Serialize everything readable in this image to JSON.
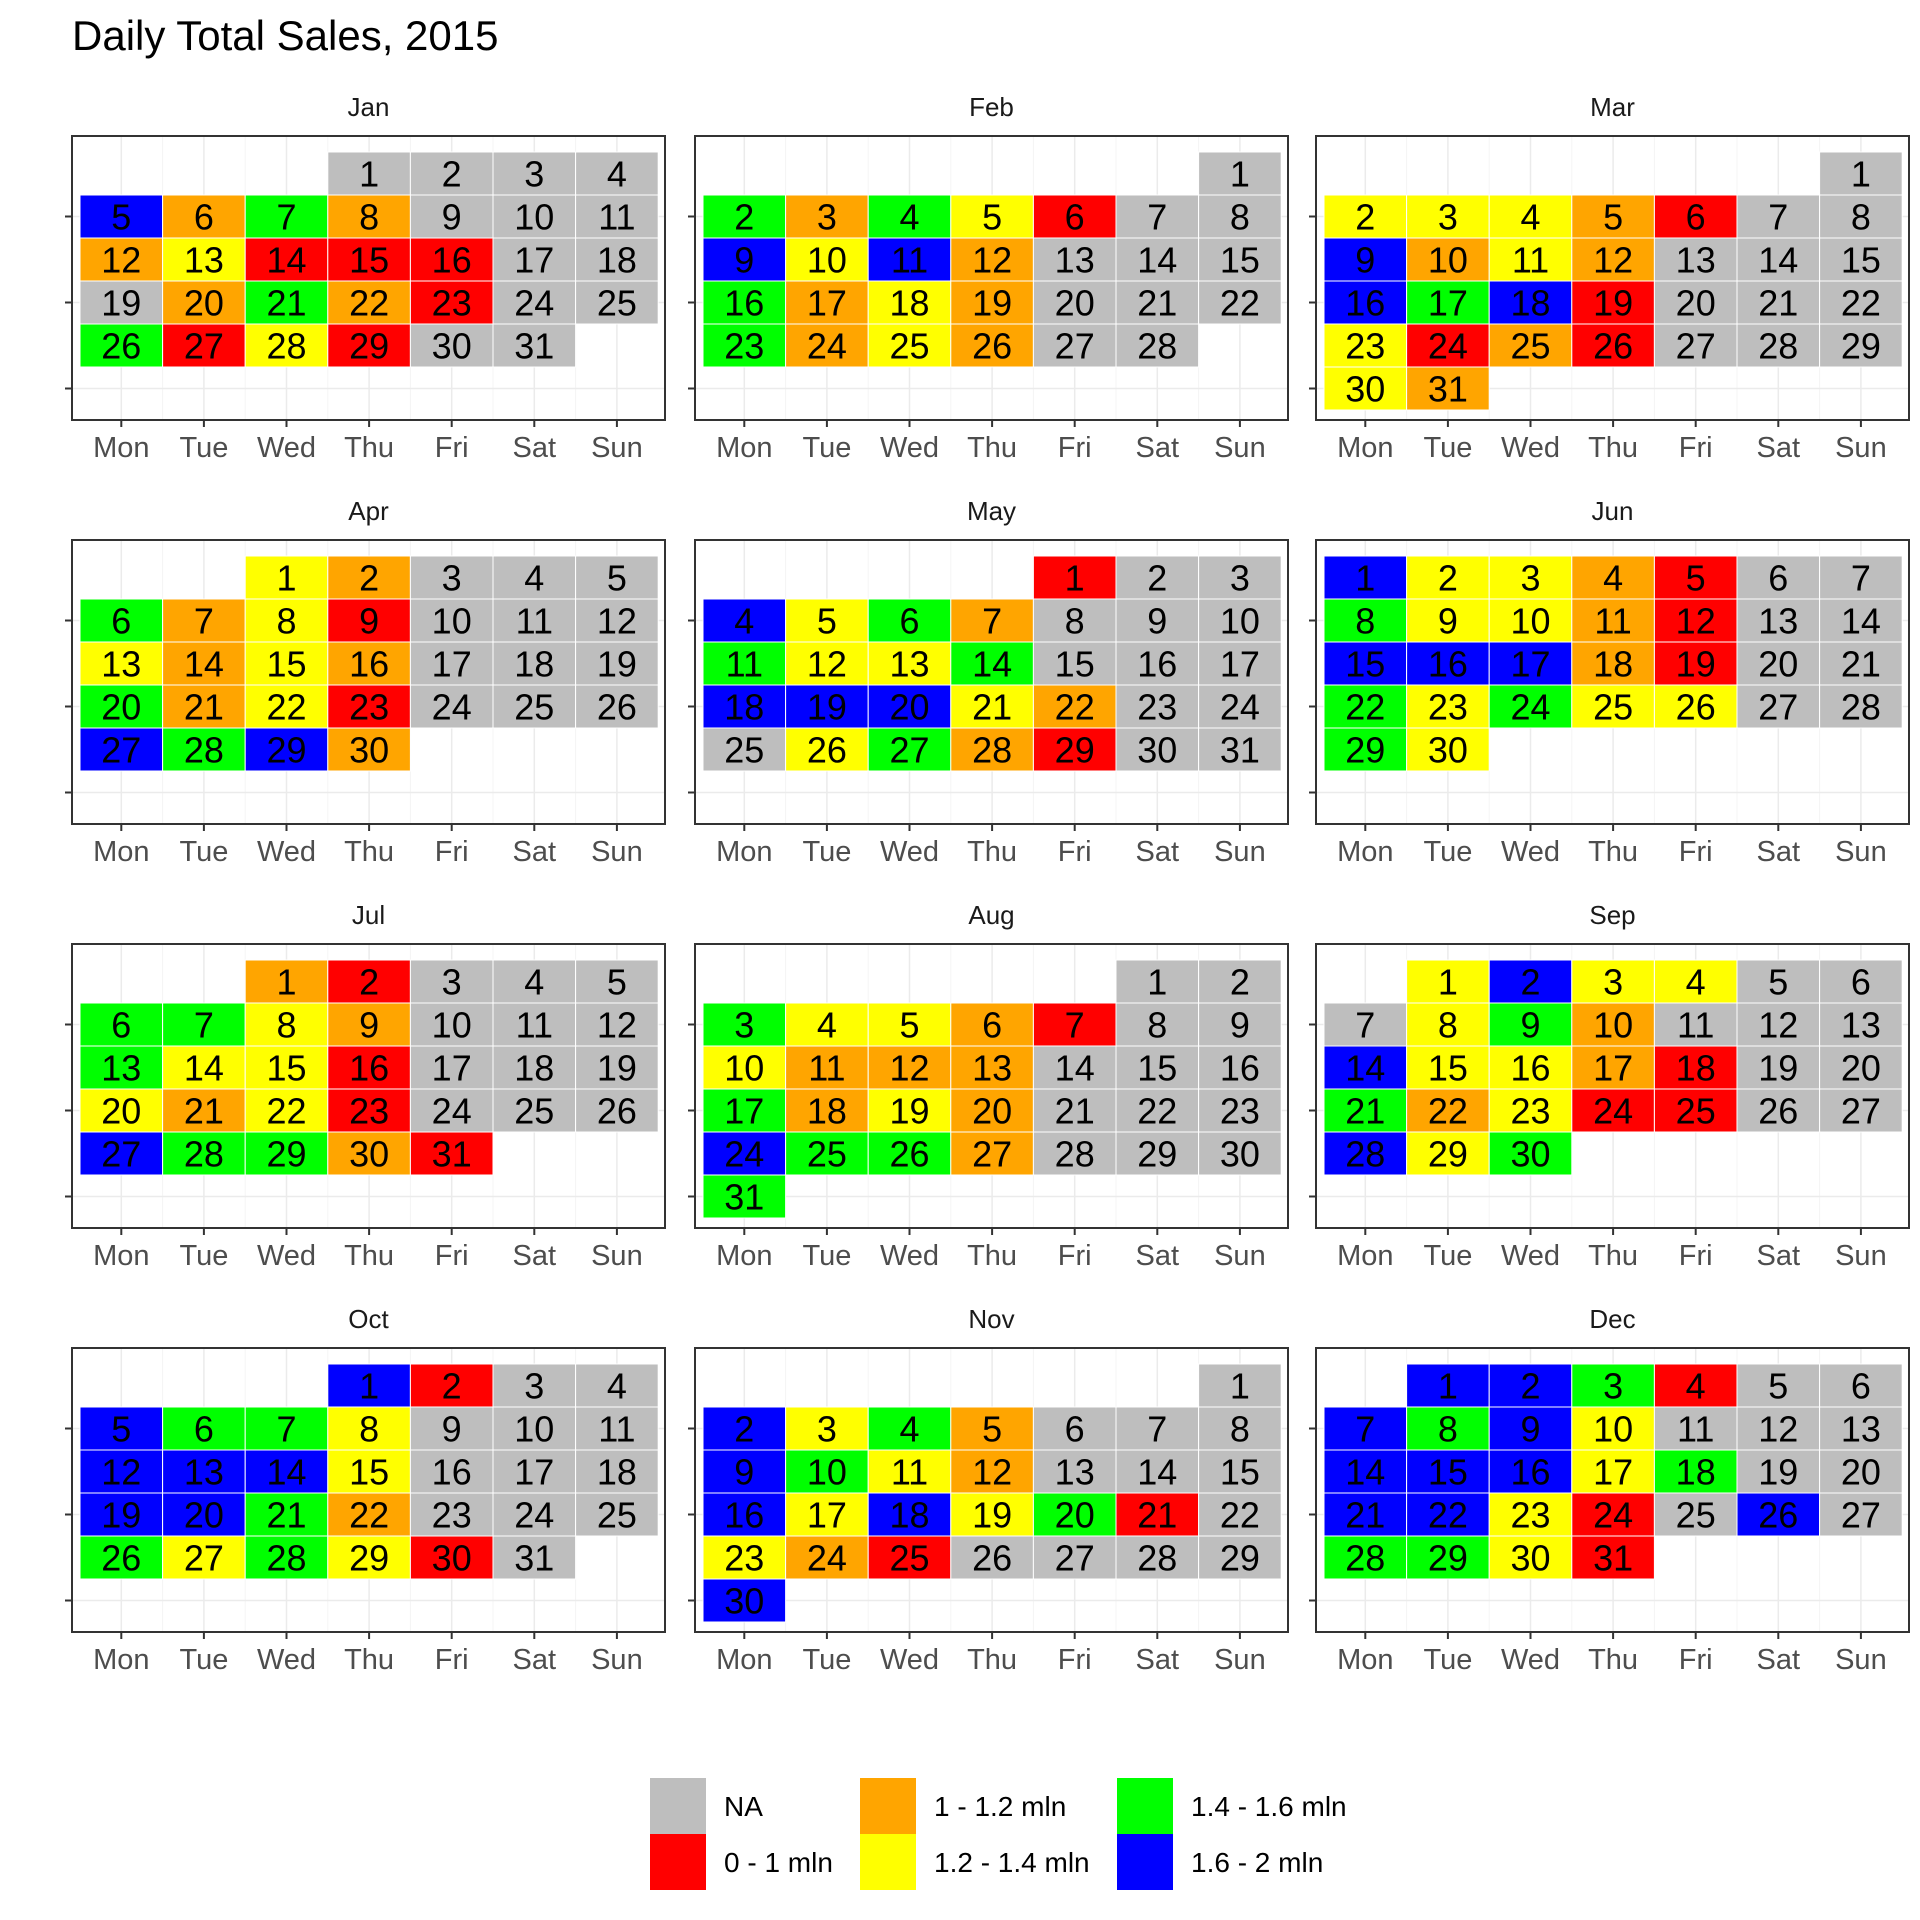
{
  "chart_data": {
    "type": "heatmap",
    "title": "Daily Total Sales, 2015",
    "year": 2015,
    "weekdays": [
      "Mon",
      "Tue",
      "Wed",
      "Thu",
      "Fri",
      "Sat",
      "Sun"
    ],
    "legend": {
      "position": "bottom",
      "items": [
        {
          "key": "NA",
          "label": "NA",
          "color": "#BEBEBE"
        },
        {
          "key": "r",
          "label": "0 - 1 mln",
          "color": "#FF0000"
        },
        {
          "key": "o",
          "label": "1 - 1.2 mln",
          "color": "#FFA500"
        },
        {
          "key": "y",
          "label": "1.2 - 1.4 mln",
          "color": "#FFFF00"
        },
        {
          "key": "g",
          "label": "1.4 - 1.6 mln",
          "color": "#00FF00"
        },
        {
          "key": "b",
          "label": "1.6 - 2 mln",
          "color": "#0000FF"
        }
      ]
    },
    "months": [
      {
        "name": "Jan",
        "start_weekday": 3,
        "days": [
          "NA",
          "NA",
          "NA",
          "NA",
          "b",
          "o",
          "g",
          "o",
          "NA",
          "NA",
          "NA",
          "o",
          "y",
          "r",
          "r",
          "r",
          "NA",
          "NA",
          "NA",
          "o",
          "g",
          "o",
          "r",
          "NA",
          "NA",
          "g",
          "r",
          "y",
          "r",
          "NA",
          "NA"
        ]
      },
      {
        "name": "Feb",
        "start_weekday": 6,
        "days": [
          "NA",
          "g",
          "o",
          "g",
          "y",
          "r",
          "NA",
          "NA",
          "b",
          "y",
          "b",
          "o",
          "NA",
          "NA",
          "NA",
          "g",
          "o",
          "y",
          "o",
          "NA",
          "NA",
          "NA",
          "g",
          "o",
          "y",
          "o",
          "NA",
          "NA"
        ]
      },
      {
        "name": "Mar",
        "start_weekday": 6,
        "days": [
          "NA",
          "y",
          "y",
          "y",
          "o",
          "r",
          "NA",
          "NA",
          "b",
          "o",
          "y",
          "o",
          "NA",
          "NA",
          "NA",
          "b",
          "g",
          "b",
          "r",
          "NA",
          "NA",
          "NA",
          "y",
          "r",
          "o",
          "r",
          "NA",
          "NA",
          "NA",
          "y",
          "o"
        ]
      },
      {
        "name": "Apr",
        "start_weekday": 2,
        "days": [
          "y",
          "o",
          "NA",
          "NA",
          "NA",
          "g",
          "o",
          "y",
          "r",
          "NA",
          "NA",
          "NA",
          "y",
          "o",
          "y",
          "o",
          "NA",
          "NA",
          "NA",
          "g",
          "o",
          "y",
          "r",
          "NA",
          "NA",
          "NA",
          "b",
          "g",
          "b",
          "o"
        ]
      },
      {
        "name": "May",
        "start_weekday": 4,
        "days": [
          "r",
          "NA",
          "NA",
          "b",
          "y",
          "g",
          "o",
          "NA",
          "NA",
          "NA",
          "g",
          "y",
          "y",
          "g",
          "NA",
          "NA",
          "NA",
          "b",
          "b",
          "b",
          "y",
          "o",
          "NA",
          "NA",
          "NA",
          "y",
          "g",
          "o",
          "r",
          "NA",
          "NA"
        ]
      },
      {
        "name": "Jun",
        "start_weekday": 0,
        "days": [
          "b",
          "y",
          "y",
          "o",
          "r",
          "NA",
          "NA",
          "g",
          "y",
          "y",
          "o",
          "r",
          "NA",
          "NA",
          "b",
          "b",
          "b",
          "o",
          "r",
          "NA",
          "NA",
          "g",
          "y",
          "g",
          "y",
          "y",
          "NA",
          "NA",
          "g",
          "y"
        ]
      },
      {
        "name": "Jul",
        "start_weekday": 2,
        "days": [
          "o",
          "r",
          "NA",
          "NA",
          "NA",
          "g",
          "g",
          "y",
          "o",
          "NA",
          "NA",
          "NA",
          "g",
          "y",
          "y",
          "r",
          "NA",
          "NA",
          "NA",
          "y",
          "o",
          "y",
          "r",
          "NA",
          "NA",
          "NA",
          "b",
          "g",
          "g",
          "o",
          "r"
        ]
      },
      {
        "name": "Aug",
        "start_weekday": 5,
        "days": [
          "NA",
          "NA",
          "g",
          "y",
          "y",
          "o",
          "r",
          "NA",
          "NA",
          "y",
          "o",
          "o",
          "o",
          "NA",
          "NA",
          "NA",
          "g",
          "o",
          "y",
          "o",
          "NA",
          "NA",
          "NA",
          "b",
          "g",
          "g",
          "o",
          "NA",
          "NA",
          "NA",
          "g"
        ]
      },
      {
        "name": "Sep",
        "start_weekday": 1,
        "days": [
          "y",
          "b",
          "y",
          "y",
          "NA",
          "NA",
          "NA",
          "y",
          "g",
          "o",
          "NA",
          "NA",
          "NA",
          "b",
          "y",
          "y",
          "o",
          "r",
          "NA",
          "NA",
          "g",
          "o",
          "y",
          "r",
          "r",
          "NA",
          "NA",
          "b",
          "y",
          "g"
        ]
      },
      {
        "name": "Oct",
        "start_weekday": 3,
        "days": [
          "b",
          "r",
          "NA",
          "NA",
          "b",
          "g",
          "g",
          "y",
          "NA",
          "NA",
          "NA",
          "b",
          "b",
          "b",
          "y",
          "NA",
          "NA",
          "NA",
          "b",
          "b",
          "g",
          "o",
          "NA",
          "NA",
          "NA",
          "g",
          "y",
          "g",
          "y",
          "r",
          "NA"
        ]
      },
      {
        "name": "Nov",
        "start_weekday": 6,
        "days": [
          "NA",
          "b",
          "y",
          "g",
          "o",
          "NA",
          "NA",
          "NA",
          "b",
          "g",
          "y",
          "o",
          "NA",
          "NA",
          "NA",
          "b",
          "y",
          "b",
          "y",
          "g",
          "r",
          "NA",
          "y",
          "o",
          "r",
          "NA",
          "NA",
          "NA",
          "NA",
          "b"
        ]
      },
      {
        "name": "Dec",
        "start_weekday": 1,
        "days": [
          "b",
          "b",
          "g",
          "r",
          "NA",
          "NA",
          "b",
          "g",
          "b",
          "y",
          "NA",
          "NA",
          "NA",
          "b",
          "b",
          "b",
          "y",
          "g",
          "NA",
          "NA",
          "b",
          "b",
          "y",
          "r",
          "NA",
          "b",
          "NA",
          "g",
          "g",
          "y",
          "r"
        ]
      }
    ]
  }
}
